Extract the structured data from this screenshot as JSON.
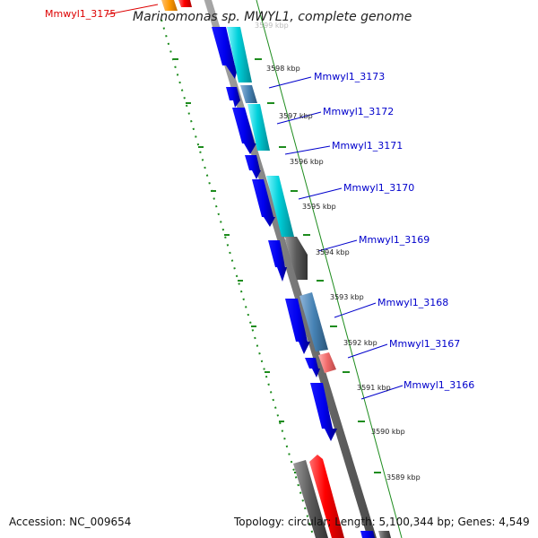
{
  "title": "Marinomonas sp. MWYL1, complete genome",
  "accession": "Accession: NC_009654",
  "topology": "Topology: circular; Length: 5,100,344 bp; Genes: 4,549",
  "top_partial_label": "3599 kbp",
  "colors": {
    "forward_gene": "#0000ee",
    "reverse_cyan": "#00c8d0",
    "reverse_steel": "#4682b4",
    "reverse_gray": "#5a5a5a",
    "reverse_pink": "#f06a6a",
    "reverse_red": "#ff0000",
    "label_blue": "#0000cc",
    "label_red": "#dd0000",
    "tick_green": "#1e8c1e",
    "backbone": "#7a7a7a"
  },
  "kbp_labels": [
    "3598 kbp",
    "3597 kbp",
    "3596 kbp",
    "3595 kbp",
    "3594 kbp",
    "3593 kbp",
    "3592 kbp",
    "3591 kbp",
    "3590 kbp",
    "3589 kbp"
  ],
  "gene_labels": [
    {
      "text": "Mmwyl1_3175",
      "color": "red"
    },
    {
      "text": "Mmwyl1_3173",
      "color": "blue"
    },
    {
      "text": "Mmwyl1_3172",
      "color": "blue"
    },
    {
      "text": "Mmwyl1_3171",
      "color": "blue"
    },
    {
      "text": "Mmwyl1_3170",
      "color": "blue"
    },
    {
      "text": "Mmwyl1_3169",
      "color": "blue"
    },
    {
      "text": "Mmwyl1_3168",
      "color": "blue"
    },
    {
      "text": "Mmwyl1_3167",
      "color": "blue"
    },
    {
      "text": "Mmwyl1_3166",
      "color": "blue"
    }
  ]
}
